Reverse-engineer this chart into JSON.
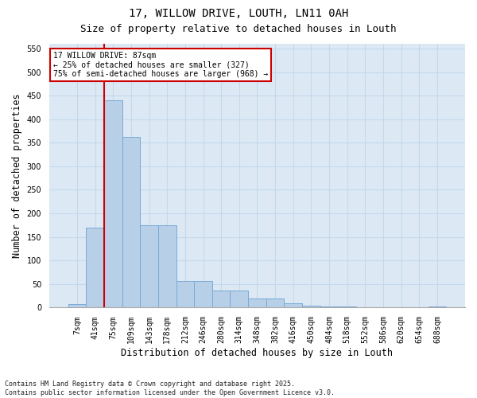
{
  "title": "17, WILLOW DRIVE, LOUTH, LN11 0AH",
  "subtitle": "Size of property relative to detached houses in Louth",
  "xlabel": "Distribution of detached houses by size in Louth",
  "ylabel": "Number of detached properties",
  "categories": [
    "7sqm",
    "41sqm",
    "75sqm",
    "109sqm",
    "143sqm",
    "178sqm",
    "212sqm",
    "246sqm",
    "280sqm",
    "314sqm",
    "348sqm",
    "382sqm",
    "416sqm",
    "450sqm",
    "484sqm",
    "518sqm",
    "552sqm",
    "586sqm",
    "620sqm",
    "654sqm",
    "688sqm"
  ],
  "values": [
    7,
    170,
    440,
    363,
    175,
    175,
    57,
    57,
    37,
    37,
    20,
    20,
    10,
    5,
    3,
    2,
    1,
    0,
    0,
    0,
    2
  ],
  "bar_color": "#b8cfe8",
  "bar_edge_color": "#7aaad4",
  "annotation_text": "17 WILLOW DRIVE: 87sqm\n← 25% of detached houses are smaller (327)\n75% of semi-detached houses are larger (968) →",
  "annotation_box_facecolor": "#ffffff",
  "annotation_box_edgecolor": "#cc0000",
  "vline_color": "#cc0000",
  "vline_x_idx": 2,
  "ylim": [
    0,
    560
  ],
  "yticks": [
    0,
    50,
    100,
    150,
    200,
    250,
    300,
    350,
    400,
    450,
    500,
    550
  ],
  "grid_color": "#c5d8eb",
  "bg_color": "#dce9f5",
  "footer": "Contains HM Land Registry data © Crown copyright and database right 2025.\nContains public sector information licensed under the Open Government Licence v3.0.",
  "title_fontsize": 10,
  "subtitle_fontsize": 9,
  "tick_fontsize": 7,
  "label_fontsize": 8.5,
  "footer_fontsize": 6
}
